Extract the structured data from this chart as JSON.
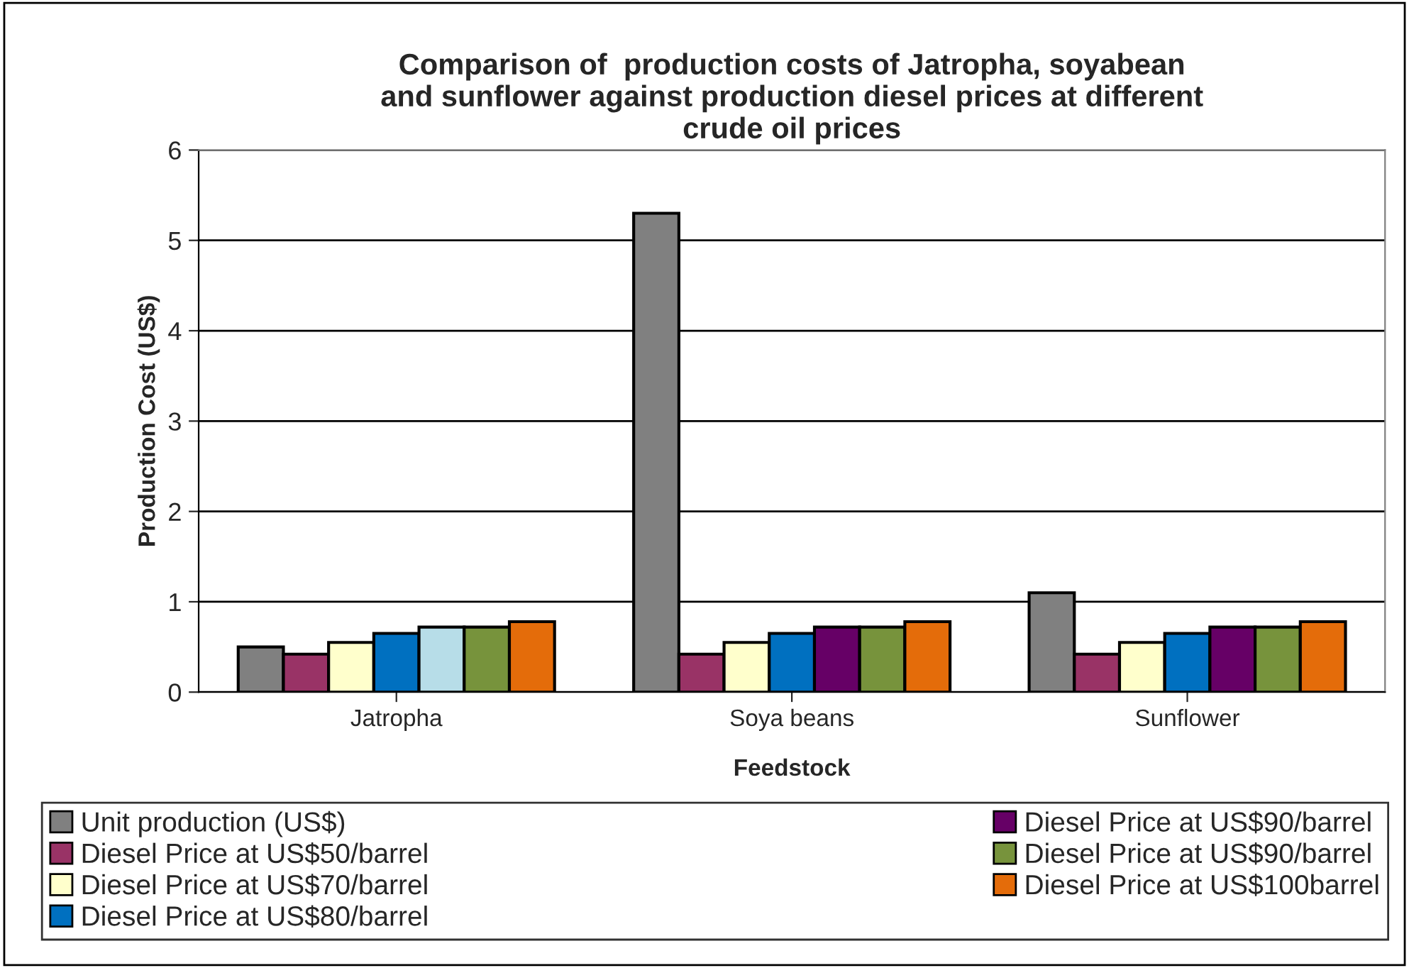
{
  "chart_data": {
    "type": "bar",
    "title": "Comparison of  production costs of Jatropha, soyabean\nand sunflower against production diesel prices at different\ncrude oil prices",
    "xlabel": "Feedstock",
    "ylabel": "Production Cost (US$)",
    "categories": [
      "Jatropha",
      "Soya beans",
      "Sunflower"
    ],
    "series": [
      {
        "name": "Unit production (US$)",
        "color": "#808080",
        "values": [
          0.5,
          5.3,
          1.1
        ]
      },
      {
        "name": "Diesel Price at US$50/barrel",
        "color": "#993366",
        "values": [
          0.42,
          0.42,
          0.42
        ]
      },
      {
        "name": "Diesel Price at US$70/barrel",
        "color": "#ffffcc",
        "values": [
          0.55,
          0.55,
          0.55
        ]
      },
      {
        "name": "Diesel Price at US$80/barrel",
        "color": "#0070c0",
        "values": [
          0.65,
          0.65,
          0.65
        ]
      },
      {
        "name": "Diesel Price at US$90/barrel",
        "color": "#660066",
        "colors": [
          "#b7dde8",
          "#660066",
          "#660066"
        ],
        "values": [
          0.72,
          0.72,
          0.72
        ]
      },
      {
        "name": "Diesel Price at US$90/barrel",
        "color": "#77933c",
        "values": [
          0.72,
          0.72,
          0.72
        ]
      },
      {
        "name": "Diesel Price at US$100barrel",
        "color": "#e46c0a",
        "values": [
          0.78,
          0.78,
          0.78
        ]
      }
    ],
    "ylim": [
      0,
      6
    ],
    "yticks": [
      0,
      1,
      2,
      3,
      4,
      5,
      6
    ],
    "grid": "y",
    "legend": "bottom"
  }
}
